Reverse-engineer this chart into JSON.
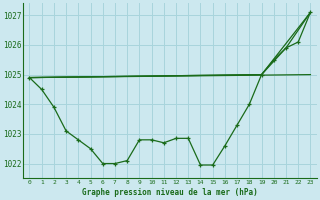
{
  "title": "Graphe pression niveau de la mer (hPa)",
  "bg_color": "#cce8ef",
  "grid_color": "#a8d4dc",
  "line_color": "#1a6b1a",
  "xlim": [
    -0.5,
    23.5
  ],
  "ylim": [
    1021.5,
    1027.4
  ],
  "yticks": [
    1022,
    1023,
    1024,
    1025,
    1026,
    1027
  ],
  "xticks": [
    0,
    1,
    2,
    3,
    4,
    5,
    6,
    7,
    8,
    9,
    10,
    11,
    12,
    13,
    14,
    15,
    16,
    17,
    18,
    19,
    20,
    21,
    22,
    23
  ],
  "series_main": {
    "x": [
      0,
      1,
      2,
      3,
      4,
      5,
      6,
      7,
      8,
      9,
      10,
      11,
      12,
      13,
      14,
      15,
      16,
      17,
      18,
      19,
      20,
      21,
      22,
      23
    ],
    "y": [
      1024.9,
      1024.5,
      1023.9,
      1023.1,
      1022.8,
      1022.5,
      1022.0,
      1022.0,
      1022.1,
      1022.8,
      1022.8,
      1022.7,
      1022.85,
      1022.85,
      1021.95,
      1021.95,
      1022.6,
      1023.3,
      1024.0,
      1025.0,
      1025.5,
      1025.9,
      1026.1,
      1027.1
    ]
  },
  "series_line1": {
    "x": [
      0,
      23
    ],
    "y": [
      1024.9,
      1025.0
    ]
  },
  "series_line2": {
    "x": [
      0,
      19,
      23
    ],
    "y": [
      1024.9,
      1025.0,
      1027.1
    ]
  },
  "series_line3": {
    "x": [
      0,
      19,
      21,
      23
    ],
    "y": [
      1024.9,
      1025.0,
      1025.9,
      1027.1
    ]
  }
}
